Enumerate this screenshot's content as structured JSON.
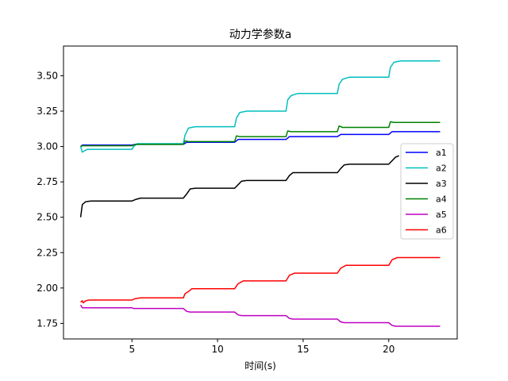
{
  "chart_data": {
    "type": "line",
    "title": "动力学参数a",
    "xlabel": "时间(s)",
    "ylabel": "",
    "xlim": [
      1.0,
      24.0
    ],
    "ylim": [
      1.64,
      3.71
    ],
    "xticks": [
      5,
      10,
      15,
      20
    ],
    "xtick_labels": [
      "5",
      "10",
      "15",
      "20"
    ],
    "yticks": [
      1.75,
      2.0,
      2.25,
      2.5,
      2.75,
      3.0,
      3.25,
      3.5
    ],
    "ytick_labels": [
      "1.75",
      "2.00",
      "2.25",
      "2.50",
      "2.75",
      "3.00",
      "3.25",
      "3.50"
    ],
    "grid": false,
    "legend_position": "center-right",
    "series": [
      {
        "name": "a1",
        "color": "#0000ff",
        "points": [
          [
            2.0,
            3.0
          ],
          [
            2.1,
            3.01
          ],
          [
            5.0,
            3.01
          ],
          [
            5.2,
            3.015
          ],
          [
            8.0,
            3.015
          ],
          [
            8.2,
            3.03
          ],
          [
            11.0,
            3.03
          ],
          [
            11.2,
            3.05
          ],
          [
            14.0,
            3.05
          ],
          [
            14.2,
            3.07
          ],
          [
            17.0,
            3.07
          ],
          [
            17.2,
            3.085
          ],
          [
            20.0,
            3.085
          ],
          [
            20.2,
            3.105
          ],
          [
            23.0,
            3.105
          ]
        ]
      },
      {
        "name": "a2",
        "color": "#00bfbf",
        "points": [
          [
            2.0,
            3.0
          ],
          [
            2.1,
            2.96
          ],
          [
            2.3,
            2.975
          ],
          [
            2.4,
            2.98
          ],
          [
            5.0,
            2.98
          ],
          [
            5.1,
            3.0
          ],
          [
            5.3,
            3.02
          ],
          [
            8.0,
            3.02
          ],
          [
            8.1,
            3.08
          ],
          [
            8.3,
            3.13
          ],
          [
            8.7,
            3.14
          ],
          [
            11.0,
            3.14
          ],
          [
            11.1,
            3.2
          ],
          [
            11.3,
            3.24
          ],
          [
            11.7,
            3.25
          ],
          [
            14.0,
            3.25
          ],
          [
            14.1,
            3.33
          ],
          [
            14.3,
            3.36
          ],
          [
            14.7,
            3.375
          ],
          [
            17.0,
            3.375
          ],
          [
            17.1,
            3.44
          ],
          [
            17.3,
            3.475
          ],
          [
            17.7,
            3.49
          ],
          [
            20.0,
            3.49
          ],
          [
            20.1,
            3.56
          ],
          [
            20.3,
            3.595
          ],
          [
            20.7,
            3.605
          ],
          [
            23.0,
            3.605
          ]
        ]
      },
      {
        "name": "a3",
        "color": "#000000",
        "points": [
          [
            2.0,
            2.5
          ],
          [
            2.1,
            2.59
          ],
          [
            2.3,
            2.61
          ],
          [
            2.6,
            2.615
          ],
          [
            5.0,
            2.615
          ],
          [
            5.2,
            2.625
          ],
          [
            5.5,
            2.635
          ],
          [
            8.0,
            2.635
          ],
          [
            8.2,
            2.665
          ],
          [
            8.4,
            2.7
          ],
          [
            8.7,
            2.705
          ],
          [
            11.0,
            2.705
          ],
          [
            11.2,
            2.73
          ],
          [
            11.4,
            2.755
          ],
          [
            11.7,
            2.76
          ],
          [
            14.0,
            2.76
          ],
          [
            14.2,
            2.795
          ],
          [
            14.4,
            2.815
          ],
          [
            14.7,
            2.815
          ],
          [
            17.0,
            2.815
          ],
          [
            17.2,
            2.845
          ],
          [
            17.4,
            2.87
          ],
          [
            17.7,
            2.875
          ],
          [
            20.0,
            2.875
          ],
          [
            20.2,
            2.9
          ],
          [
            20.4,
            2.925
          ],
          [
            20.6,
            2.935
          ]
        ]
      },
      {
        "name": "a4",
        "color": "#008000",
        "points": [
          [
            2.0,
            3.0
          ],
          [
            2.1,
            3.005
          ],
          [
            5.0,
            3.005
          ],
          [
            5.1,
            3.01
          ],
          [
            5.3,
            3.015
          ],
          [
            8.0,
            3.015
          ],
          [
            8.1,
            3.04
          ],
          [
            8.3,
            3.035
          ],
          [
            11.0,
            3.035
          ],
          [
            11.1,
            3.075
          ],
          [
            11.3,
            3.07
          ],
          [
            14.0,
            3.07
          ],
          [
            14.1,
            3.11
          ],
          [
            14.3,
            3.105
          ],
          [
            17.0,
            3.105
          ],
          [
            17.1,
            3.145
          ],
          [
            17.3,
            3.135
          ],
          [
            20.0,
            3.135
          ],
          [
            20.1,
            3.175
          ],
          [
            20.3,
            3.17
          ],
          [
            23.0,
            3.17
          ]
        ]
      },
      {
        "name": "a5",
        "color": "#bf00bf",
        "points": [
          [
            2.0,
            1.88
          ],
          [
            2.1,
            1.86
          ],
          [
            2.3,
            1.86
          ],
          [
            5.0,
            1.86
          ],
          [
            5.1,
            1.855
          ],
          [
            8.0,
            1.855
          ],
          [
            8.2,
            1.835
          ],
          [
            8.4,
            1.83
          ],
          [
            11.0,
            1.83
          ],
          [
            11.2,
            1.81
          ],
          [
            11.4,
            1.805
          ],
          [
            14.0,
            1.805
          ],
          [
            14.2,
            1.785
          ],
          [
            14.4,
            1.78
          ],
          [
            17.0,
            1.78
          ],
          [
            17.2,
            1.76
          ],
          [
            17.4,
            1.755
          ],
          [
            20.0,
            1.755
          ],
          [
            20.2,
            1.735
          ],
          [
            20.4,
            1.73
          ],
          [
            23.0,
            1.73
          ]
        ]
      },
      {
        "name": "a6",
        "color": "#ff0000",
        "points": [
          [
            2.0,
            1.9
          ],
          [
            2.1,
            1.91
          ],
          [
            2.15,
            1.895
          ],
          [
            2.3,
            1.91
          ],
          [
            2.5,
            1.915
          ],
          [
            5.0,
            1.915
          ],
          [
            5.2,
            1.925
          ],
          [
            5.5,
            1.93
          ],
          [
            8.0,
            1.93
          ],
          [
            8.1,
            1.96
          ],
          [
            8.3,
            1.975
          ],
          [
            8.5,
            1.995
          ],
          [
            11.0,
            1.995
          ],
          [
            11.2,
            2.03
          ],
          [
            11.5,
            2.05
          ],
          [
            14.0,
            2.05
          ],
          [
            14.2,
            2.09
          ],
          [
            14.5,
            2.105
          ],
          [
            17.0,
            2.105
          ],
          [
            17.2,
            2.14
          ],
          [
            17.5,
            2.16
          ],
          [
            20.0,
            2.16
          ],
          [
            20.2,
            2.2
          ],
          [
            20.5,
            2.215
          ],
          [
            23.0,
            2.215
          ]
        ]
      }
    ]
  }
}
